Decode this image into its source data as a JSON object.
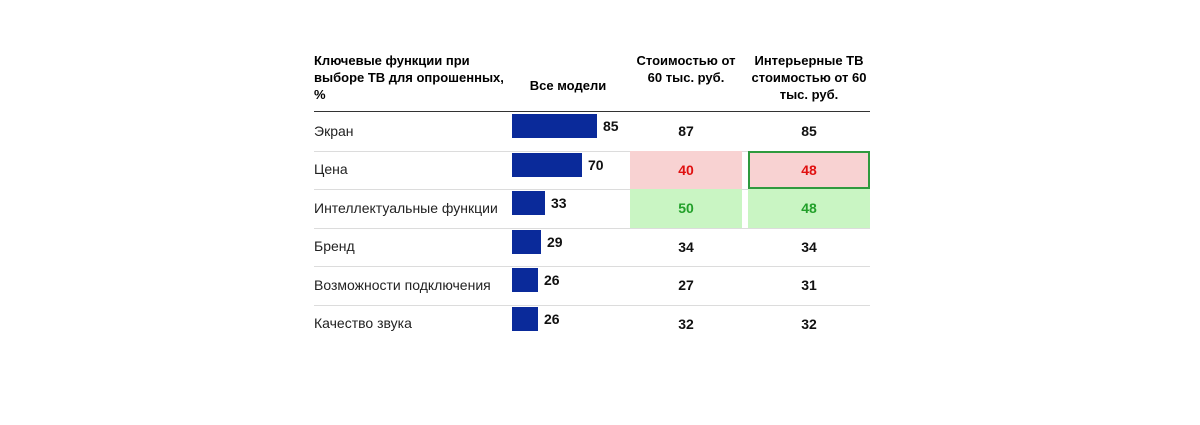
{
  "chart_data": {
    "type": "table",
    "headers": {
      "label": "Ключевые функции при выборе ТВ для опрошенных, %",
      "all_models": "Все модели",
      "col1": "Стоимостью от 60 тыс. руб.",
      "col2": "Интерьерные ТВ стоимостью от 60 тыс. руб."
    },
    "bar_max": 100,
    "rows": [
      {
        "label": "Экран",
        "all": 85,
        "col1": 87,
        "col2": 85,
        "col1_highlight": "",
        "col2_highlight": ""
      },
      {
        "label": "Цена",
        "all": 70,
        "col1": 40,
        "col2": 48,
        "col1_highlight": "red",
        "col2_highlight": "red-boxed"
      },
      {
        "label": "Интеллектуальные функции",
        "all": 33,
        "col1": 50,
        "col2": 48,
        "col1_highlight": "green",
        "col2_highlight": "green"
      },
      {
        "label": "Бренд",
        "all": 29,
        "col1": 34,
        "col2": 34,
        "col1_highlight": "",
        "col2_highlight": ""
      },
      {
        "label": "Возможности подключения",
        "all": 26,
        "col1": 27,
        "col2": 31,
        "col1_highlight": "",
        "col2_highlight": ""
      },
      {
        "label": "Качество звука",
        "all": 26,
        "col1": 32,
        "col2": 32,
        "col1_highlight": "",
        "col2_highlight": ""
      }
    ],
    "colors": {
      "bar": "#0a2a9a",
      "negative": "#e01010",
      "positive": "#22a02a",
      "negative_bg": "#f8d2d2",
      "positive_bg": "#c9f5c3",
      "box_border": "#2f9a3e"
    }
  }
}
